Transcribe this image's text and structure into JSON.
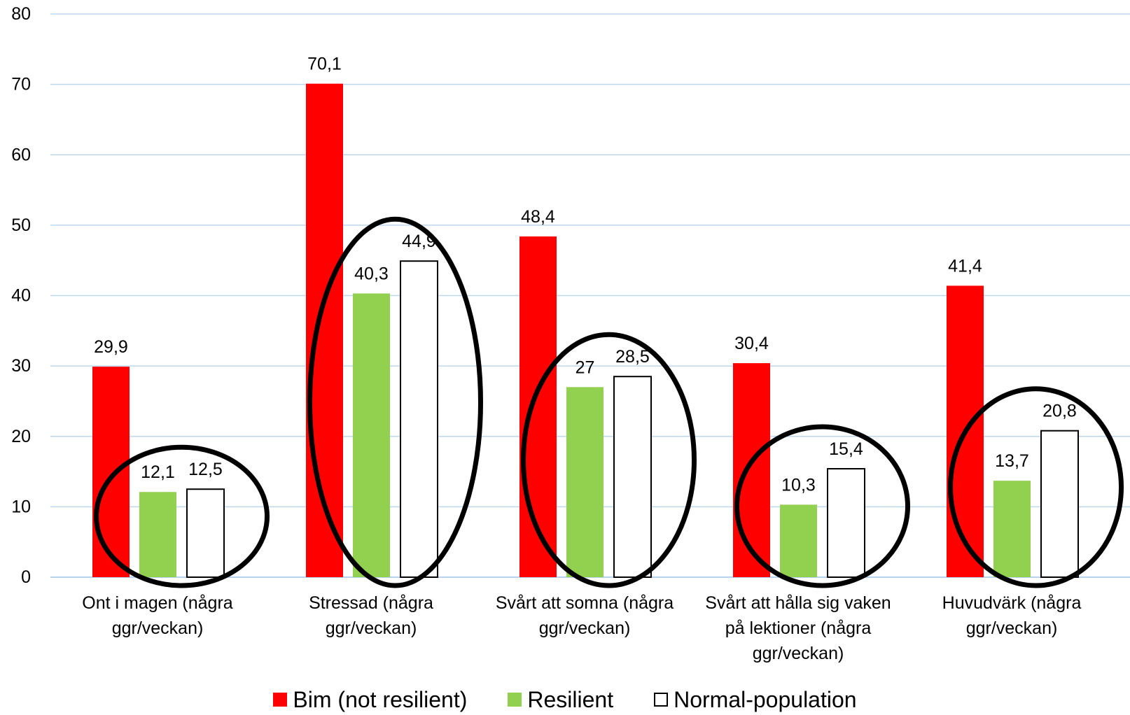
{
  "chart_data": {
    "type": "bar",
    "categories": [
      [
        "Ont i magen (några",
        "ggr/veckan)"
      ],
      [
        "Stressad (några",
        "ggr/veckan)"
      ],
      [
        "Svårt att somna (några",
        "ggr/veckan)"
      ],
      [
        "Svårt att hålla sig vaken",
        "på lektioner (några",
        "ggr/veckan)"
      ],
      [
        "Huvudvärk (några",
        "ggr/veckan)"
      ]
    ],
    "series": [
      {
        "name": "Bim (not resilient)",
        "color": "#ff0000",
        "values": [
          29.9,
          70.1,
          48.4,
          30.4,
          41.4
        ],
        "labels": [
          "29,9",
          "70,1",
          "48,4",
          "30,4",
          "41,4"
        ]
      },
      {
        "name": "Resilient",
        "color": "#92d050",
        "values": [
          12.1,
          40.3,
          27,
          10.3,
          13.7
        ],
        "labels": [
          "12,1",
          "40,3",
          "27",
          "10,3",
          "13,7"
        ]
      },
      {
        "name": "Normal-population",
        "color": "#ffffff",
        "outline": "#000000",
        "values": [
          12.5,
          44.9,
          28.5,
          15.4,
          20.8
        ],
        "labels": [
          "12,5",
          "44,9",
          "28,5",
          "15,4",
          "20,8"
        ]
      }
    ],
    "yticks": [
      "0",
      "10",
      "20",
      "30",
      "40",
      "50",
      "60",
      "70",
      "80"
    ],
    "ylim": [
      0,
      80
    ],
    "grid": true,
    "gridline_color": "#bdd7ee",
    "legend_position": "bottom",
    "annotations": "ellipses circling the Resilient and Normal-population bars of each category"
  }
}
